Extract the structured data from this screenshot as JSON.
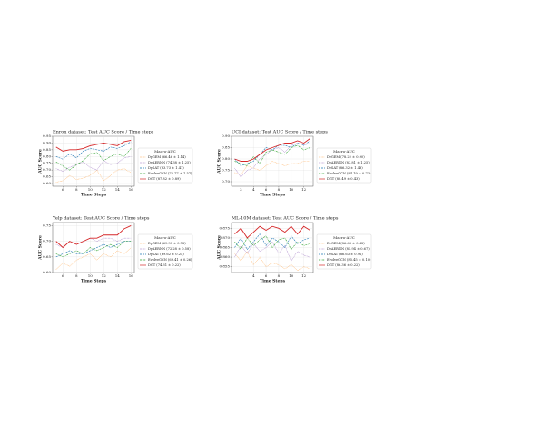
{
  "chart_data": [
    {
      "type": "line",
      "title": "Enron dataset: Test AUC Score / Time steps",
      "xlabel": "Time Steps",
      "ylabel": "AUC Score",
      "legend_title": "Macro-AUC",
      "x": [
        5,
        6,
        7,
        8,
        9,
        10,
        11,
        12,
        13,
        14,
        15,
        16
      ],
      "xlim": [
        4.5,
        16.5
      ],
      "xticks": [
        6,
        8,
        10,
        12,
        14,
        16
      ],
      "ylim": [
        0.58,
        0.95
      ],
      "yticks": [
        {
          "value": 0.6,
          "label": "0.60"
        },
        {
          "value": 0.65,
          "label": "0.65"
        },
        {
          "value": 0.7,
          "label": "0.70"
        },
        {
          "value": 0.75,
          "label": "0.75"
        },
        {
          "value": 0.8,
          "label": "0.80"
        },
        {
          "value": 0.85,
          "label": "0.85"
        },
        {
          "value": 0.9,
          "label": "0.90"
        },
        {
          "value": 0.95,
          "label": "0.95"
        }
      ],
      "grid": true,
      "series": [
        {
          "name": "DyGEM (66.46 ± 1.14)",
          "color": "#ffa64d",
          "linestyle": "dotted",
          "values": [
            0.61,
            0.62,
            0.66,
            0.63,
            0.64,
            0.66,
            0.7,
            0.62,
            0.66,
            0.7,
            0.71,
            0.68
          ]
        },
        {
          "name": "DyAERNN (74.38 ± 1.25)",
          "color": "#9467bd",
          "linestyle": "dotted",
          "values": [
            0.71,
            0.69,
            0.72,
            0.74,
            0.76,
            0.72,
            0.7,
            0.77,
            0.74,
            0.75,
            0.79,
            0.8
          ]
        },
        {
          "name": "DySAT (83.73 ± 1.41)",
          "color": "#1f77b4",
          "linestyle": "dashed",
          "values": [
            0.8,
            0.78,
            0.82,
            0.79,
            0.84,
            0.86,
            0.85,
            0.84,
            0.87,
            0.86,
            0.88,
            0.91
          ]
        },
        {
          "name": "EvolveGCN (75.77 ± 1.57)",
          "color": "#2ca02c",
          "linestyle": "dashdot",
          "values": [
            0.76,
            0.73,
            0.7,
            0.74,
            0.77,
            0.82,
            0.83,
            0.77,
            0.8,
            0.82,
            0.8,
            0.86
          ]
        },
        {
          "name": "DGT (87.82 ± 0.89)",
          "color": "#d62728",
          "linestyle": "solid",
          "values": [
            0.87,
            0.84,
            0.85,
            0.85,
            0.86,
            0.88,
            0.89,
            0.9,
            0.89,
            0.88,
            0.91,
            0.92
          ]
        }
      ]
    },
    {
      "type": "line",
      "title": "UCI dataset: Test AUC Score / Time steps",
      "xlabel": "Time Steps",
      "ylabel": "AUC Score",
      "legend_title": "Macro-AUC",
      "x": [
        1,
        2,
        3,
        4,
        5,
        6,
        7,
        8,
        9,
        10,
        11,
        12,
        13
      ],
      "xlim": [
        0.5,
        13.5
      ],
      "xticks": [
        2,
        4,
        6,
        8,
        10,
        12
      ],
      "ylim": [
        0.68,
        0.9
      ],
      "yticks": [
        {
          "value": 0.7,
          "label": "0.70"
        },
        {
          "value": 0.75,
          "label": "0.75"
        },
        {
          "value": 0.8,
          "label": "0.80"
        },
        {
          "value": 0.85,
          "label": "0.85"
        },
        {
          "value": 0.9,
          "label": "0.90"
        }
      ],
      "grid": true,
      "series": [
        {
          "name": "DyGEM (78.22 ± 0.90)",
          "color": "#ffa64d",
          "linestyle": "dotted",
          "values": [
            0.74,
            0.73,
            0.77,
            0.76,
            0.75,
            0.77,
            0.79,
            0.78,
            0.77,
            0.78,
            0.78,
            0.79,
            0.79
          ]
        },
        {
          "name": "DyAERNN (83.81 ± 1.25)",
          "color": "#9467bd",
          "linestyle": "dotted",
          "values": [
            0.76,
            0.72,
            0.75,
            0.76,
            0.8,
            0.82,
            0.84,
            0.85,
            0.83,
            0.86,
            0.87,
            0.86,
            0.87
          ]
        },
        {
          "name": "DySAT (86.32 ± 1.48)",
          "color": "#1f77b4",
          "linestyle": "dashed",
          "values": [
            0.8,
            0.77,
            0.78,
            0.79,
            0.82,
            0.85,
            0.84,
            0.86,
            0.86,
            0.85,
            0.87,
            0.86,
            0.88
          ]
        },
        {
          "name": "EvolveGCN (84.19 ± 0.73)",
          "color": "#2ca02c",
          "linestyle": "dashdot",
          "values": [
            0.79,
            0.78,
            0.77,
            0.81,
            0.78,
            0.83,
            0.84,
            0.83,
            0.82,
            0.85,
            0.86,
            0.84,
            0.85
          ]
        },
        {
          "name": "DGT (88.49 ± 0.43)",
          "color": "#d62728",
          "linestyle": "solid",
          "values": [
            0.8,
            0.79,
            0.79,
            0.8,
            0.82,
            0.84,
            0.85,
            0.86,
            0.87,
            0.87,
            0.88,
            0.87,
            0.89
          ]
        }
      ]
    },
    {
      "type": "line",
      "title": "Yelp dataset: Test AUC Score / Time steps",
      "xlabel": "Time Steps",
      "ylabel": "AUC Score",
      "legend_title": "Macro-AUC",
      "x": [
        5,
        6,
        7,
        8,
        9,
        10,
        11,
        12,
        13,
        14,
        15,
        16
      ],
      "xlim": [
        4.5,
        16.5
      ],
      "xticks": [
        6,
        8,
        10,
        12,
        14,
        16
      ],
      "ylim": [
        0.6,
        0.76
      ],
      "yticks": [
        {
          "value": 0.6,
          "label": "0.60"
        },
        {
          "value": 0.65,
          "label": "0.65"
        },
        {
          "value": 0.7,
          "label": "0.70"
        },
        {
          "value": 0.75,
          "label": "0.75"
        }
      ],
      "grid": true,
      "series": [
        {
          "name": "DyGEM (69.93 ± 0.78)",
          "color": "#ffa64d",
          "linestyle": "dotted",
          "values": [
            0.61,
            0.63,
            0.62,
            0.64,
            0.65,
            0.66,
            0.64,
            0.66,
            0.65,
            0.67,
            0.66,
            0.68
          ]
        },
        {
          "name": "DyAERNN (72.28 ± 0.58)",
          "color": "#9467bd",
          "linestyle": "dotted",
          "values": [
            0.69,
            0.68,
            0.7,
            0.69,
            0.7,
            0.71,
            0.7,
            0.71,
            0.71,
            0.7,
            0.71,
            0.71
          ]
        },
        {
          "name": "DySAT (69.62 ± 0.25)",
          "color": "#1f77b4",
          "linestyle": "dashed",
          "values": [
            0.65,
            0.66,
            0.67,
            0.66,
            0.66,
            0.67,
            0.68,
            0.69,
            0.68,
            0.69,
            0.7,
            0.7
          ]
        },
        {
          "name": "EvolveGCN (69.41 ± 0.26)",
          "color": "#2ca02c",
          "linestyle": "dashdot",
          "values": [
            0.66,
            0.65,
            0.66,
            0.67,
            0.66,
            0.68,
            0.67,
            0.68,
            0.69,
            0.68,
            0.7,
            0.7
          ]
        },
        {
          "name": "DGT (74.31 ± 0.22)",
          "color": "#d62728",
          "linestyle": "solid",
          "values": [
            0.7,
            0.68,
            0.7,
            0.69,
            0.7,
            0.71,
            0.71,
            0.72,
            0.72,
            0.72,
            0.74,
            0.75
          ]
        }
      ]
    },
    {
      "type": "line",
      "title": "ML-10M dataset: Test AUC Score / Time steps",
      "xlabel": "Time Steps",
      "ylabel": "AUC Score",
      "legend_title": "Macro-AUC",
      "x": [
        1,
        2,
        3,
        4,
        5,
        6,
        7,
        8,
        9,
        10,
        11,
        12,
        13
      ],
      "xlim": [
        0.5,
        13.5
      ],
      "xticks": [
        4,
        6,
        8,
        10,
        12
      ],
      "ylim": [
        0.852,
        0.878
      ],
      "yticks": [
        0.855,
        {
          "value": 0.86,
          "label": "0.860"
        },
        0.865,
        {
          "value": 0.87,
          "label": "0.870"
        },
        0.875
      ],
      "grid": true,
      "series": [
        {
          "name": "DyGEM (86.66 ± 0.48)",
          "color": "#ffa64d",
          "linestyle": "dotted",
          "values": [
            0.862,
            0.858,
            0.863,
            0.856,
            0.86,
            0.855,
            0.857,
            0.856,
            0.854,
            0.856,
            0.853,
            0.855,
            0.854
          ]
        },
        {
          "name": "DyAERNN (85.94 ± 0.67)",
          "color": "#9467bd",
          "linestyle": "dotted",
          "values": [
            0.86,
            0.866,
            0.862,
            0.867,
            0.863,
            0.865,
            0.868,
            0.862,
            0.866,
            0.858,
            0.863,
            0.861,
            0.86
          ]
        },
        {
          "name": "DySAT (86.63 ± 0.91)",
          "color": "#1f77b4",
          "linestyle": "dashed",
          "values": [
            0.865,
            0.87,
            0.864,
            0.868,
            0.872,
            0.866,
            0.87,
            0.868,
            0.865,
            0.871,
            0.867,
            0.869,
            0.87
          ]
        },
        {
          "name": "EvolveGCN (85.45 ± 0.10)",
          "color": "#2ca02c",
          "linestyle": "dashdot",
          "values": [
            0.868,
            0.864,
            0.87,
            0.866,
            0.869,
            0.871,
            0.865,
            0.869,
            0.87,
            0.864,
            0.868,
            0.866,
            0.867
          ]
        },
        {
          "name": "DGT (86.36 ± 0.22)",
          "color": "#d62728",
          "linestyle": "solid",
          "values": [
            0.872,
            0.875,
            0.87,
            0.873,
            0.876,
            0.874,
            0.876,
            0.875,
            0.873,
            0.876,
            0.872,
            0.876,
            0.874
          ]
        }
      ]
    }
  ]
}
